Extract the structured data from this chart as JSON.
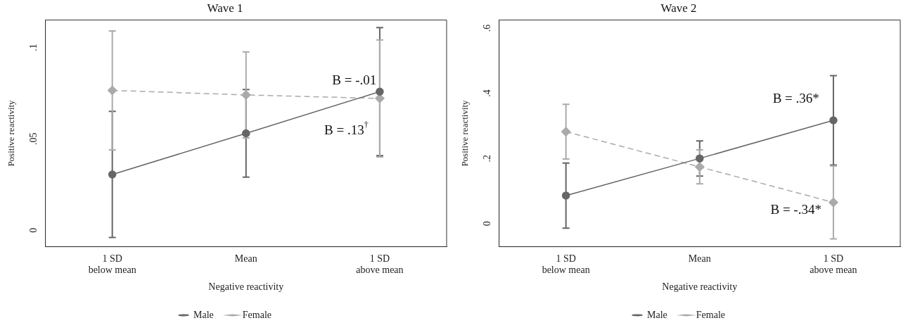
{
  "chart_data": [
    {
      "type": "line",
      "title": "Wave 1",
      "xlabel": "Negative reactivity",
      "ylabel": "Positive reactivity",
      "categories": [
        "1 SD\nbelow mean",
        "Mean",
        "1 SD\nabove mean"
      ],
      "ylim": [
        -0.009,
        0.115
      ],
      "yticks": [
        {
          "value": 0,
          "label": "0"
        },
        {
          "value": 0.05,
          "label": ".05"
        },
        {
          "value": 0.1,
          "label": ".1"
        }
      ],
      "grid": false,
      "legend": "bottom",
      "series": [
        {
          "name": "Male",
          "color": "#666666",
          "values": [
            0.0305,
            0.053,
            0.0758
          ],
          "errors": [
            0.0345,
            0.024,
            0.035
          ],
          "marker": "circle",
          "line_style": "solid"
        },
        {
          "name": "Female",
          "color": "#aaaaaa",
          "values": [
            0.0765,
            0.074,
            0.0721
          ],
          "errors": [
            0.0325,
            0.0235,
            0.032
          ],
          "marker": "diamond",
          "line_style": "dashed"
        }
      ],
      "annotations": [
        "B = -.01",
        "B = .13$^{†}$"
      ]
    },
    {
      "type": "line",
      "title": "Wave 2",
      "xlabel": "Negative reactivity",
      "ylabel": "Positive reactivity",
      "categories": [
        "1 SD\nbelow mean",
        "Mean",
        "1 SD\nabove mean"
      ],
      "ylim": [
        -0.071,
        0.625
      ],
      "yticks": [
        {
          "value": 0,
          "label": "0"
        },
        {
          "value": 0.2,
          "label": ".2"
        },
        {
          "value": 0.4,
          "label": ".4"
        },
        {
          "value": 0.6,
          "label": ".6"
        }
      ],
      "grid": false,
      "legend": "bottom",
      "series": [
        {
          "name": "Male",
          "color": "#666666",
          "values": [
            0.086,
            0.2,
            0.317
          ],
          "errors": [
            0.1,
            0.054,
            0.137
          ],
          "marker": "circle",
          "line_style": "solid"
        },
        {
          "name": "Female",
          "color": "#aaaaaa",
          "values": [
            0.282,
            0.174,
            0.065
          ],
          "errors": [
            0.084,
            0.052,
            0.112
          ],
          "marker": "diamond",
          "line_style": "dashed"
        }
      ],
      "annotations": [
        "B = .36*",
        "B = -.34*"
      ]
    }
  ]
}
